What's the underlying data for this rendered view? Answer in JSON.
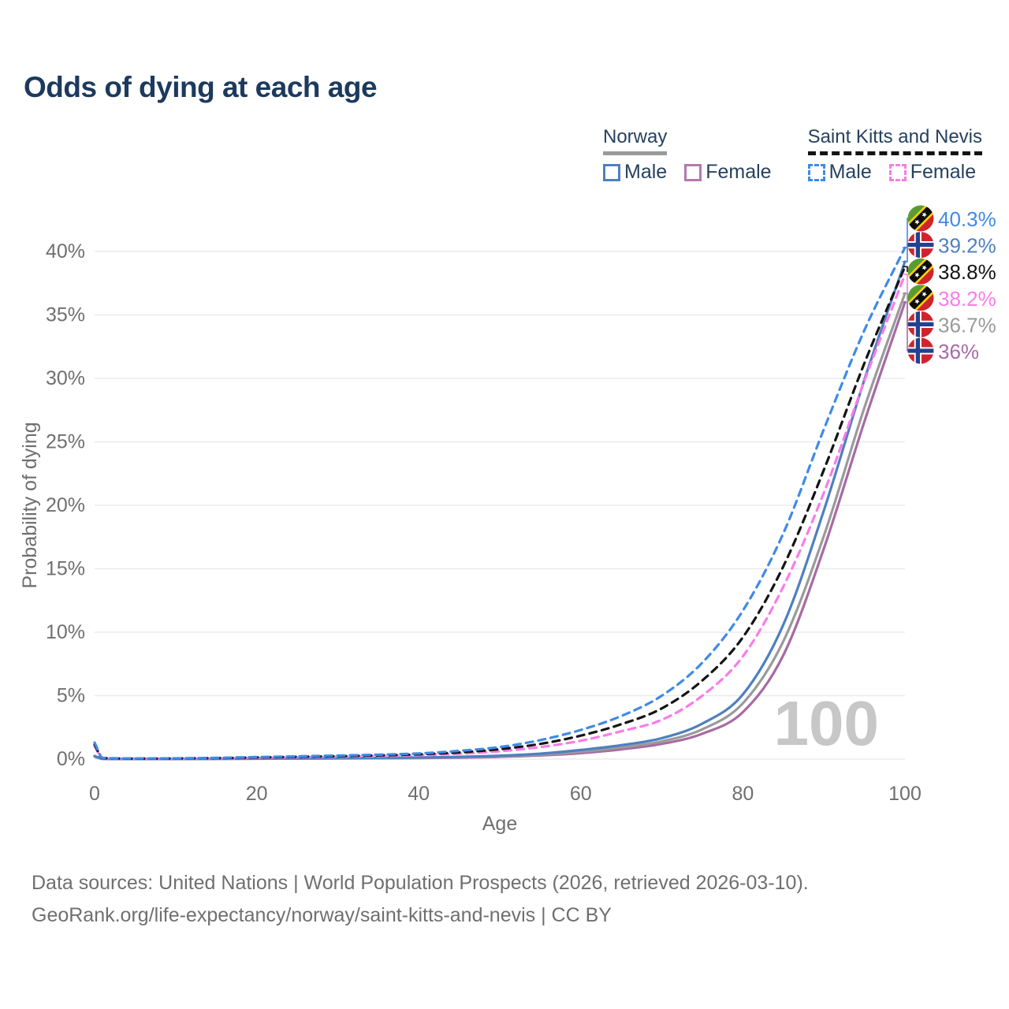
{
  "title": "Odds of dying at each age",
  "legend": {
    "norway": {
      "title": "Norway",
      "male": "Male",
      "female": "Female"
    },
    "saint_kitts": {
      "title": "Saint Kitts and Nevis",
      "male": "Male",
      "female": "Female"
    }
  },
  "colors": {
    "title_text": "#1c3a5e",
    "legend_text": "#26415e",
    "axis_text": "#6f6f6f",
    "grid": "#ebebeb",
    "watermark": "#c7c7c7",
    "norway_underline": "#9a9a9a",
    "skn_underline": "#141414",
    "flag_red": "#d0232e",
    "flag_green": "#5a9c33",
    "flag_yellow": "#ffd100",
    "norway_blue": "#22418f"
  },
  "chart_data": {
    "type": "line",
    "title": "Odds of dying at each age",
    "xlabel": "Age",
    "ylabel": "Probability of dying",
    "xlim": [
      0,
      100
    ],
    "ylim": [
      0,
      40
    ],
    "xticks": [
      0,
      20,
      40,
      60,
      80,
      100
    ],
    "ytick_values": [
      0,
      5,
      10,
      15,
      20,
      25,
      30,
      35,
      40
    ],
    "ytick_labels": [
      "0%",
      "5%",
      "10%",
      "15%",
      "20%",
      "25%",
      "30%",
      "35%",
      "40%"
    ],
    "grid": "horizontal",
    "legend_position": "top-right",
    "watermark": "100",
    "ages": [
      0,
      1,
      3,
      5,
      10,
      15,
      20,
      25,
      30,
      35,
      40,
      45,
      50,
      55,
      60,
      65,
      70,
      75,
      80,
      85,
      90,
      95,
      100
    ],
    "series": [
      {
        "id": "nor_female",
        "name": "Norway Female",
        "color": "#a86aa4",
        "dash": false,
        "values": [
          0.2,
          0.02,
          0.01,
          0.01,
          0.01,
          0.02,
          0.03,
          0.04,
          0.05,
          0.07,
          0.09,
          0.12,
          0.18,
          0.29,
          0.47,
          0.77,
          1.2,
          2.0,
          3.7,
          8.2,
          16.6,
          26.6,
          36.0
        ]
      },
      {
        "id": "nor_all",
        "name": "Norway",
        "color": "#9a9a9a",
        "dash": false,
        "values": [
          0.22,
          0.02,
          0.01,
          0.01,
          0.01,
          0.02,
          0.04,
          0.05,
          0.07,
          0.08,
          0.11,
          0.15,
          0.22,
          0.35,
          0.58,
          0.92,
          1.4,
          2.35,
          4.4,
          9.3,
          17.6,
          27.7,
          36.7
        ]
      },
      {
        "id": "nor_male",
        "name": "Norway Male",
        "color": "#4e80c0",
        "dash": false,
        "values": [
          0.25,
          0.03,
          0.01,
          0.01,
          0.01,
          0.03,
          0.05,
          0.07,
          0.08,
          0.1,
          0.13,
          0.18,
          0.27,
          0.43,
          0.72,
          1.1,
          1.65,
          2.8,
          5.1,
          10.6,
          19.6,
          29.9,
          39.2
        ]
      },
      {
        "id": "skn_female",
        "name": "Saint Kitts and Nevis Female",
        "color": "#fa7ce9",
        "dash": true,
        "values": [
          1.0,
          0.08,
          0.05,
          0.04,
          0.04,
          0.06,
          0.1,
          0.14,
          0.18,
          0.23,
          0.31,
          0.43,
          0.62,
          0.95,
          1.45,
          2.2,
          3.1,
          5.0,
          8.1,
          13.6,
          21.0,
          29.8,
          38.2
        ]
      },
      {
        "id": "skn_all",
        "name": "Saint Kitts and Nevis",
        "color": "#141414",
        "dash": true,
        "values": [
          1.15,
          0.09,
          0.05,
          0.04,
          0.05,
          0.08,
          0.13,
          0.18,
          0.23,
          0.29,
          0.38,
          0.53,
          0.78,
          1.2,
          1.85,
          2.75,
          4.0,
          6.2,
          9.6,
          15.2,
          22.8,
          31.2,
          38.8
        ]
      },
      {
        "id": "skn_male",
        "name": "Saint Kitts and Nevis Male",
        "color": "#3f8ae8",
        "dash": true,
        "values": [
          1.3,
          0.1,
          0.06,
          0.05,
          0.06,
          0.1,
          0.16,
          0.22,
          0.28,
          0.35,
          0.45,
          0.65,
          0.95,
          1.5,
          2.3,
          3.4,
          5.0,
          7.6,
          11.7,
          17.8,
          26.0,
          33.8,
          40.3
        ]
      }
    ],
    "end_labels": [
      {
        "series": "skn_male",
        "text": "40.3%",
        "flag": "skn"
      },
      {
        "series": "nor_male",
        "text": "39.2%",
        "flag": "nor"
      },
      {
        "series": "skn_all",
        "text": "38.8%",
        "flag": "skn"
      },
      {
        "series": "skn_female",
        "text": "38.2%",
        "flag": "skn"
      },
      {
        "series": "nor_all",
        "text": "36.7%",
        "flag": "nor"
      },
      {
        "series": "nor_female",
        "text": "36%",
        "flag": "nor"
      }
    ]
  },
  "footer": {
    "line1": "Data sources: United Nations | World Population Prospects (2026, retrieved 2026-03-10).",
    "line2": "GeoRank.org/life-expectancy/norway/saint-kitts-and-nevis | CC BY"
  }
}
